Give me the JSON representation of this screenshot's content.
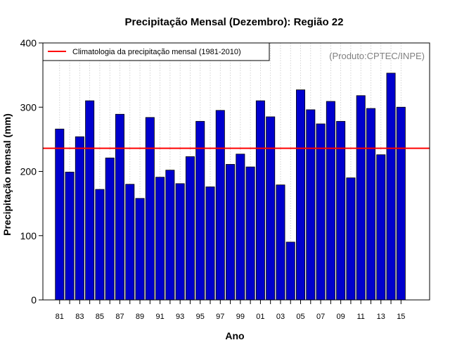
{
  "chart_data": {
    "type": "bar",
    "title": "Precipitação Mensal (Dezembro): Região 22",
    "xlabel": "Ano",
    "ylabel": "Precipitação mensal (mm)",
    "ylim": [
      0,
      400
    ],
    "yticks": [
      0,
      100,
      200,
      300,
      400
    ],
    "grid": "vertical dotted",
    "categories": [
      "81",
      "82",
      "83",
      "84",
      "85",
      "86",
      "87",
      "88",
      "89",
      "90",
      "91",
      "92",
      "93",
      "94",
      "95",
      "96",
      "97",
      "98",
      "99",
      "00",
      "01",
      "02",
      "03",
      "04",
      "05",
      "06",
      "07",
      "08",
      "09",
      "10",
      "11",
      "12",
      "13",
      "14",
      "15"
    ],
    "xtick_labels": [
      "81",
      "83",
      "85",
      "87",
      "89",
      "91",
      "93",
      "95",
      "97",
      "99",
      "01",
      "03",
      "05",
      "07",
      "09",
      "11",
      "13",
      "15"
    ],
    "values": [
      266,
      199,
      254,
      310,
      172,
      221,
      289,
      180,
      158,
      284,
      191,
      202,
      181,
      223,
      278,
      176,
      295,
      211,
      227,
      207,
      310,
      285,
      179,
      90,
      327,
      296,
      274,
      309,
      278,
      190,
      318,
      298,
      226,
      353,
      300
    ],
    "bar_color": "#0000CD",
    "reference_line": {
      "label": "Climatologia da precipitação mensal (1981-2010)",
      "value": 236,
      "color": "#FF0000"
    },
    "legend_position": "top-left",
    "credit": "(Produto:CPTEC/INPE)"
  }
}
